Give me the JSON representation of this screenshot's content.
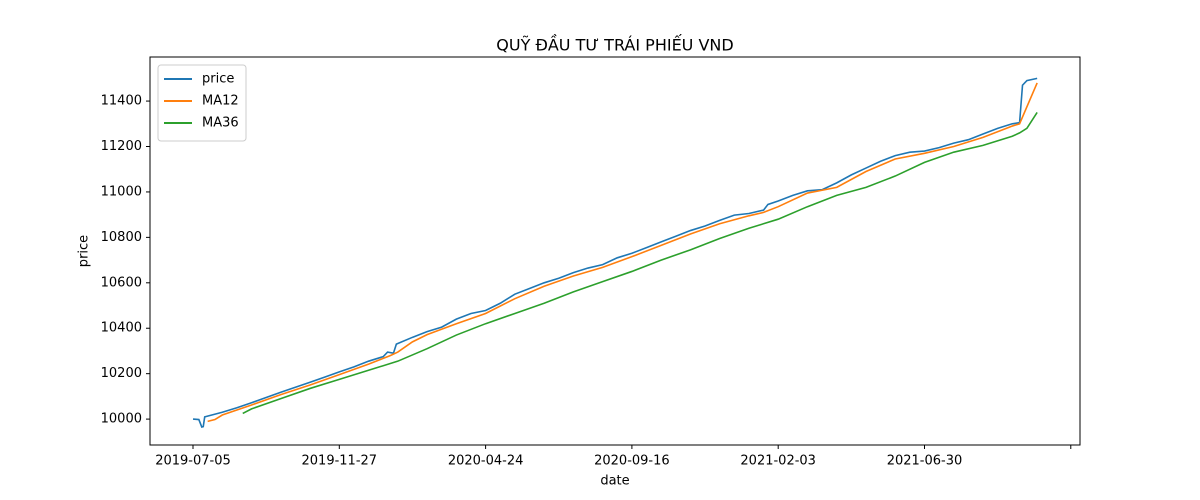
{
  "chart_data": {
    "type": "line",
    "title": "QUỸ ĐẦU TƯ TRÁI PHIẾU VND",
    "x_label": "date",
    "y_label": "price",
    "xlim": [
      -29.4,
      606.3
    ],
    "ylim": [
      9886,
      11594
    ],
    "xticks": [
      {
        "value": 0,
        "label": "2019-07-05"
      },
      {
        "value": 100,
        "label": "2019-11-27"
      },
      {
        "value": 200,
        "label": "2020-04-24"
      },
      {
        "value": 300,
        "label": "2020-09-16"
      },
      {
        "value": 400,
        "label": "2021-02-03"
      },
      {
        "value": 500,
        "label": "2021-06-30"
      },
      {
        "value": 600,
        "label": null
      }
    ],
    "yticks": [
      10000,
      10200,
      10400,
      10600,
      10800,
      11000,
      11200,
      11400
    ],
    "legend": "upper left",
    "series": [
      {
        "name": "price",
        "color": "#1f77b4",
        "x": [
          0,
          4,
          6,
          7,
          8,
          20,
          30,
          40,
          50,
          60,
          70,
          80,
          90,
          100,
          110,
          120,
          130,
          133,
          137,
          139,
          150,
          160,
          170,
          180,
          190,
          200,
          210,
          220,
          230,
          240,
          250,
          260,
          270,
          280,
          290,
          300,
          310,
          320,
          330,
          340,
          350,
          360,
          370,
          380,
          390,
          393,
          400,
          410,
          420,
          430,
          440,
          450,
          460,
          470,
          480,
          490,
          500,
          510,
          520,
          530,
          540,
          550,
          560,
          565,
          567,
          570,
          577
        ],
        "values": [
          10000,
          9998,
          9965,
          9967,
          10010,
          10030,
          10050,
          10072,
          10095,
          10118,
          10140,
          10162,
          10185,
          10208,
          10230,
          10255,
          10275,
          10295,
          10290,
          10330,
          10360,
          10385,
          10405,
          10440,
          10465,
          10478,
          10510,
          10550,
          10575,
          10600,
          10620,
          10645,
          10665,
          10680,
          10710,
          10730,
          10755,
          10780,
          10805,
          10830,
          10850,
          10875,
          10898,
          10905,
          10920,
          10945,
          10960,
          10985,
          11005,
          11010,
          11040,
          11075,
          11105,
          11135,
          11160,
          11175,
          11180,
          11195,
          11215,
          11230,
          11255,
          11280,
          11300,
          11305,
          11470,
          11490,
          11500
        ]
      },
      {
        "name": "MA12",
        "color": "#ff7f0e",
        "x": [
          10,
          15,
          20,
          40,
          60,
          80,
          100,
          120,
          135,
          140,
          150,
          160,
          180,
          200,
          220,
          240,
          260,
          280,
          300,
          320,
          340,
          360,
          380,
          390,
          400,
          420,
          440,
          460,
          480,
          500,
          520,
          540,
          560,
          565,
          577
        ],
        "values": [
          9990,
          9998,
          10018,
          10062,
          10108,
          10150,
          10196,
          10242,
          10280,
          10295,
          10340,
          10372,
          10420,
          10465,
          10530,
          10585,
          10630,
          10668,
          10715,
          10765,
          10815,
          10860,
          10895,
          10910,
          10935,
          10995,
          11020,
          11090,
          11145,
          11170,
          11200,
          11240,
          11290,
          11300,
          11480
        ]
      },
      {
        "name": "MA36",
        "color": "#2ca02c",
        "x": [
          34,
          40,
          60,
          80,
          100,
          120,
          140,
          160,
          180,
          200,
          220,
          240,
          260,
          280,
          300,
          320,
          340,
          360,
          380,
          400,
          420,
          440,
          460,
          480,
          500,
          520,
          540,
          560,
          565,
          570,
          577
        ],
        "values": [
          10025,
          10045,
          10090,
          10135,
          10175,
          10215,
          10255,
          10310,
          10370,
          10420,
          10465,
          10510,
          10560,
          10605,
          10650,
          10700,
          10745,
          10795,
          10840,
          10880,
          10935,
          10985,
          11020,
          11070,
          11130,
          11175,
          11205,
          11245,
          11260,
          11280,
          11350
        ]
      }
    ]
  }
}
